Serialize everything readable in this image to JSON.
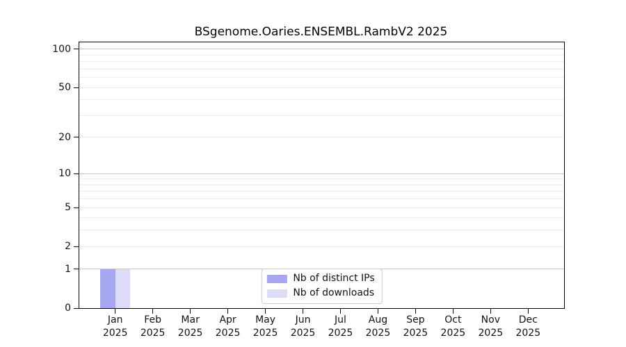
{
  "chart_data": {
    "type": "bar",
    "title": "BSgenome.Oaries.ENSEMBL.RambV2 2025",
    "categories": [
      "Jan",
      "Feb",
      "Mar",
      "Apr",
      "May",
      "Jun",
      "Jul",
      "Aug",
      "Sep",
      "Oct",
      "Nov",
      "Dec"
    ],
    "category_year": "2025",
    "series": [
      {
        "name": "Nb of distinct IPs",
        "color": "#a6a6f2",
        "values": [
          1,
          0,
          0,
          0,
          0,
          0,
          0,
          0,
          0,
          0,
          0,
          0
        ]
      },
      {
        "name": "Nb of downloads",
        "color": "#dcdcf8",
        "values": [
          1,
          0,
          0,
          0,
          0,
          0,
          0,
          0,
          0,
          0,
          0,
          0
        ]
      }
    ],
    "xlabel": "",
    "ylabel": "",
    "yscale": "log1p",
    "ylim": [
      0,
      113
    ],
    "ytick_values": [
      0,
      1,
      2,
      5,
      10,
      20,
      50,
      100
    ],
    "grid_major_values": [
      1,
      10,
      100
    ],
    "grid_minor_values": [
      2,
      3,
      4,
      5,
      6,
      7,
      8,
      9,
      20,
      30,
      40,
      50,
      60,
      70,
      80,
      90
    ],
    "grid": "on",
    "legend_position": "lower center"
  },
  "colors": {
    "background": "#ffffff",
    "spine": "#000000",
    "grid_major": "#c6c6c6",
    "grid_minor": "#ededed",
    "legend_border": "#cccccc",
    "distinct_ips": "#a6a6f2",
    "downloads": "#dcdcf8"
  }
}
